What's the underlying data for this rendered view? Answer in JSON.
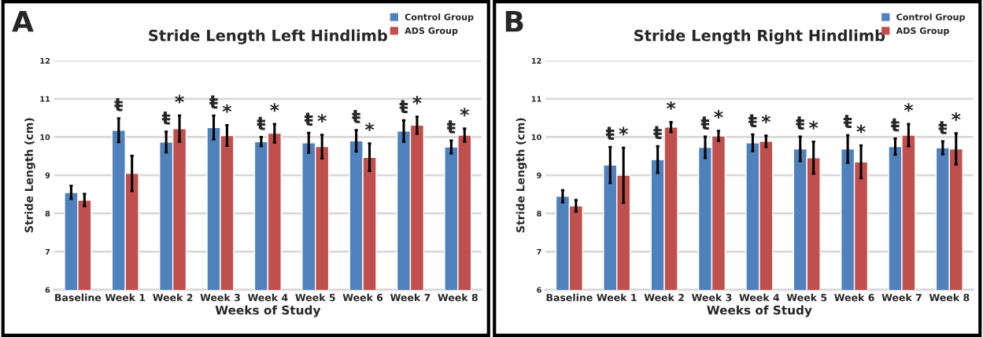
{
  "chart_data": [
    {
      "type": "bar",
      "title": "Stride Length Left Hindlimb",
      "xlabel": "Weeks of Study",
      "ylabel": "Stride Length (cm)",
      "categories": [
        "Baseline",
        "Week 1",
        "Week 2",
        "Week 3",
        "Week 4",
        "Week 5",
        "Week 6",
        "Week 7",
        "Week 8"
      ],
      "series": [
        {
          "name": "Control Group",
          "color": "#4f81bd",
          "values": [
            8.55,
            10.18,
            9.87,
            10.25,
            9.88,
            9.85,
            9.9,
            10.16,
            9.74
          ],
          "errors": [
            0.17,
            0.31,
            0.27,
            0.31,
            0.12,
            0.26,
            0.28,
            0.28,
            0.17
          ],
          "value_labels": [
            null,
            "ŧ",
            "ŧ",
            "ŧ",
            "ŧ",
            "ŧ",
            "ŧ",
            "ŧ",
            "ŧ"
          ]
        },
        {
          "name": "ADS Group",
          "color": "#c0504d",
          "values": [
            8.35,
            9.05,
            10.22,
            10.04,
            10.1,
            9.75,
            9.47,
            10.31,
            10.05
          ],
          "errors": [
            0.16,
            0.46,
            0.34,
            0.27,
            0.24,
            0.31,
            0.36,
            0.22,
            0.17
          ],
          "value_labels": [
            null,
            null,
            "*",
            "*",
            "*",
            "*",
            "*",
            "*",
            "*"
          ]
        }
      ],
      "ylim": [
        6,
        12
      ],
      "yticks": [
        6,
        7,
        8,
        9,
        10,
        11,
        12
      ],
      "grid": "y",
      "legend": "top right",
      "annotations": [
        "A"
      ]
    },
    {
      "type": "bar",
      "title": "Stride Length Right Hindlimb",
      "xlabel": "Weeks of Study",
      "ylabel": "Stride Length (cm)",
      "categories": [
        "Baseline",
        "Week 1",
        "Week 2",
        "Week 3",
        "Week 4",
        "Week 5",
        "Week 6",
        "Week 7",
        "Week 8"
      ],
      "series": [
        {
          "name": "Control Group",
          "color": "#4f81bd",
          "values": [
            8.45,
            9.27,
            9.41,
            9.73,
            9.85,
            9.69,
            9.69,
            9.75,
            9.72
          ],
          "errors": [
            0.16,
            0.47,
            0.35,
            0.28,
            0.22,
            0.32,
            0.36,
            0.21,
            0.17
          ],
          "value_labels": [
            null,
            "ŧ",
            "ŧ",
            "ŧ",
            "ŧ",
            "ŧ",
            "ŧ",
            "ŧ",
            "ŧ"
          ]
        },
        {
          "name": "ADS Group",
          "color": "#c0504d",
          "values": [
            8.2,
            9.0,
            10.26,
            10.03,
            9.89,
            9.46,
            9.35,
            10.05,
            9.69
          ],
          "errors": [
            0.15,
            0.72,
            0.13,
            0.13,
            0.15,
            0.42,
            0.43,
            0.29,
            0.41
          ],
          "value_labels": [
            null,
            "*",
            "*",
            "*",
            "*",
            "*",
            "*",
            "*",
            "*"
          ]
        }
      ],
      "ylim": [
        6,
        12
      ],
      "yticks": [
        6,
        7,
        8,
        9,
        10,
        11,
        12
      ],
      "grid": "y",
      "legend": "top right",
      "annotations": [
        "B"
      ]
    }
  ]
}
